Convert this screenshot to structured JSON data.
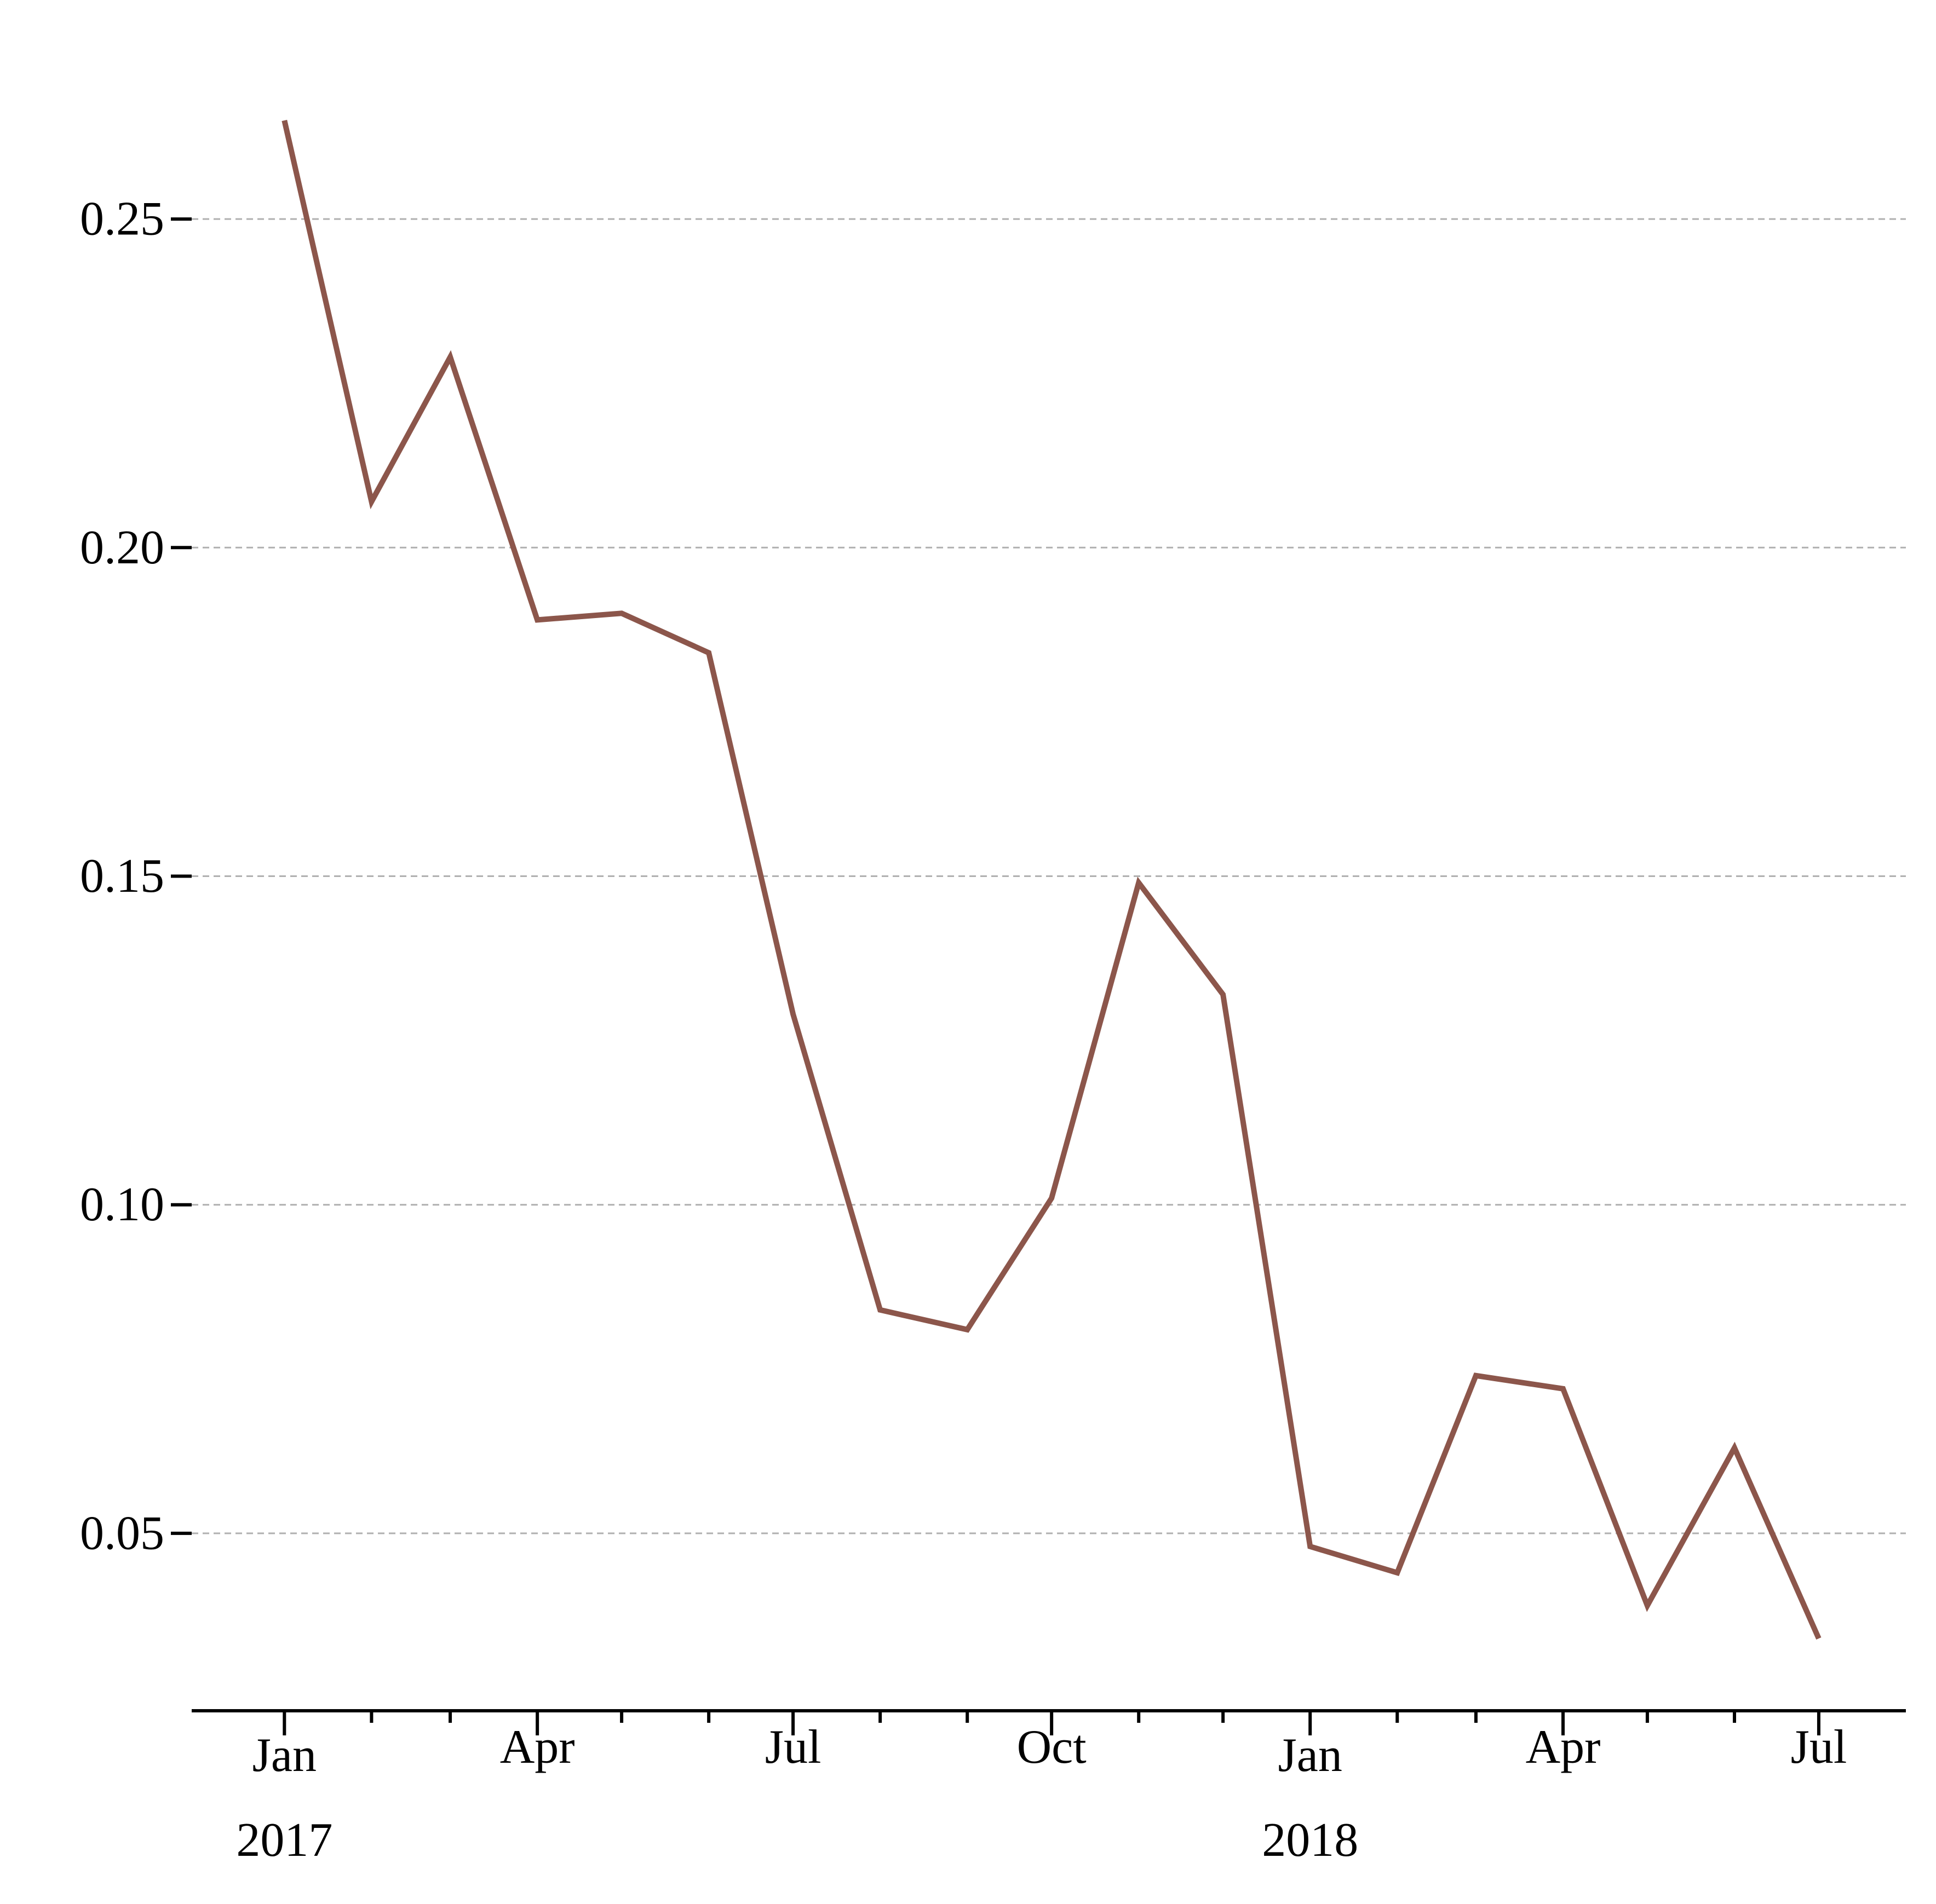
{
  "chart_data": {
    "type": "line",
    "title": "",
    "xlabel": "",
    "ylabel": "",
    "grid": "horizontal dashed",
    "line_color": "#8c564b",
    "ylim": [
      0.023,
      0.275
    ],
    "yticks": [
      {
        "value": 0.05,
        "label": "0.05"
      },
      {
        "value": 0.1,
        "label": "0.10"
      },
      {
        "value": 0.15,
        "label": "0.15"
      },
      {
        "value": 0.2,
        "label": "0.20"
      },
      {
        "value": 0.25,
        "label": "0.25"
      }
    ],
    "xlim": [
      "2016-11-29",
      "2018-08-01"
    ],
    "xticks_major": [
      {
        "date": "2017-01-01",
        "label": "Jan",
        "sublabel": "2017"
      },
      {
        "date": "2017-04-01",
        "label": "Apr",
        "sublabel": ""
      },
      {
        "date": "2017-07-01",
        "label": "Jul",
        "sublabel": ""
      },
      {
        "date": "2017-10-01",
        "label": "Oct",
        "sublabel": ""
      },
      {
        "date": "2018-01-01",
        "label": "Jan",
        "sublabel": "2018"
      },
      {
        "date": "2018-04-01",
        "label": "Apr",
        "sublabel": ""
      },
      {
        "date": "2018-07-01",
        "label": "Jul",
        "sublabel": ""
      }
    ],
    "xticks_minor": [
      "2017-02-01",
      "2017-03-01",
      "2017-05-01",
      "2017-06-01",
      "2017-08-01",
      "2017-09-01",
      "2017-11-01",
      "2017-12-01",
      "2018-02-01",
      "2018-03-01",
      "2018-05-01",
      "2018-06-01"
    ],
    "series": [
      {
        "x": [
          "2017-01-01",
          "2017-02-01",
          "2017-03-01",
          "2017-04-01",
          "2017-05-01",
          "2017-06-01",
          "2017-07-01",
          "2017-08-01",
          "2017-09-01",
          "2017-10-01",
          "2017-11-01",
          "2017-12-01",
          "2018-01-01",
          "2018-02-01",
          "2018-03-01",
          "2018-04-01",
          "2018-05-01",
          "2018-06-01",
          "2018-07-01"
        ],
        "values": [
          0.265,
          0.207,
          0.229,
          0.189,
          0.19,
          0.184,
          0.129,
          0.084,
          0.081,
          0.101,
          0.149,
          0.132,
          0.048,
          0.044,
          0.074,
          0.072,
          0.039,
          0.063,
          0.034
        ]
      }
    ]
  }
}
